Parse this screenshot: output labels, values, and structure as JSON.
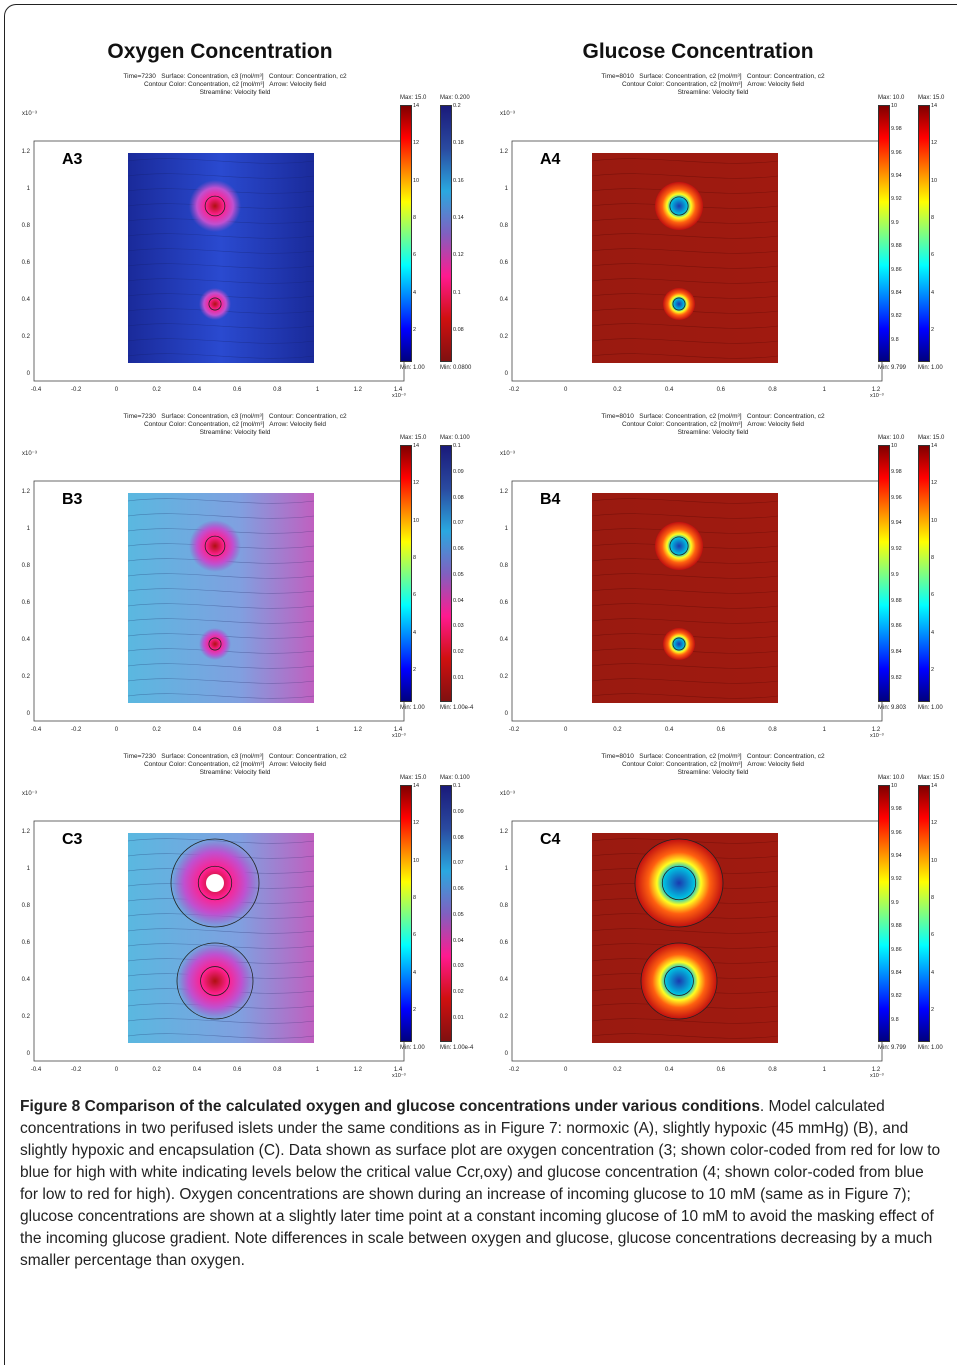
{
  "column_titles": [
    "Oxygen Concentration",
    "Glucose Concentration"
  ],
  "panels": [
    {
      "label": "A3",
      "time": "Time=7230",
      "surface": "Surface: Concentration, c3 [mol/m³]",
      "contour": "Contour: Concentration, c2",
      "contour_color": "Contour Color: Concentration, c2 [mol/m³]",
      "arrow": "Arrow: Velocity field",
      "streamline": "Streamline: Velocity field",
      "cbar1": {
        "max": "Max: 15.0",
        "min": "Min: 1.00",
        "ticks": [
          "14",
          "12",
          "10",
          "8",
          "6",
          "4",
          "2"
        ]
      },
      "cbar2": {
        "max": "Max: 0.200",
        "min": "Min: 0.0800",
        "ticks": [
          "0.2",
          "0.18",
          "0.16",
          "0.14",
          "0.12",
          "0.1",
          "0.08"
        ]
      },
      "xticks": [
        "-0.4",
        "-0.2",
        "0",
        "0.2",
        "0.4",
        "0.6",
        "0.8",
        "1",
        "1.2",
        "1.4"
      ],
      "yticks": [
        "1.2",
        "1",
        "0.8",
        "0.6",
        "0.4",
        "0.2",
        "0"
      ],
      "scale": "x10⁻³"
    },
    {
      "label": "A4",
      "time": "Time=8010",
      "surface": "Surface: Concentration, c2 [mol/m³]",
      "contour": "Contour: Concentration, c2",
      "contour_color": "Contour Color: Concentration, c2 [mol/m³]",
      "arrow": "Arrow: Velocity field",
      "streamline": "Streamline: Velocity field",
      "cbar1": {
        "max": "Max: 10.0",
        "min": "Min: 9.799",
        "ticks": [
          "10",
          "9.98",
          "9.96",
          "9.94",
          "9.92",
          "9.9",
          "9.88",
          "9.86",
          "9.84",
          "9.82",
          "9.8"
        ]
      },
      "cbar2": {
        "max": "Max: 15.0",
        "min": "Min: 1.00",
        "ticks": [
          "14",
          "12",
          "10",
          "8",
          "6",
          "4",
          "2"
        ]
      },
      "xticks": [
        "-0.2",
        "0",
        "0.2",
        "0.4",
        "0.6",
        "0.8",
        "1",
        "1.2"
      ],
      "yticks": [
        "1.2",
        "1",
        "0.8",
        "0.6",
        "0.4",
        "0.2",
        "0"
      ],
      "scale": "x10⁻³"
    },
    {
      "label": "B3",
      "time": "Time=7230",
      "surface": "Surface: Concentration, c3 [mol/m³]",
      "contour": "Contour: Concentration, c2",
      "contour_color": "Contour Color: Concentration, c2 [mol/m³]",
      "arrow": "Arrow: Velocity field",
      "streamline": "Streamline: Velocity field",
      "cbar1": {
        "max": "Max: 15.0",
        "min": "Min: 1.00",
        "ticks": [
          "14",
          "12",
          "10",
          "8",
          "6",
          "4",
          "2"
        ]
      },
      "cbar2": {
        "max": "Max: 0.100",
        "min": "Min: 1.00e-4",
        "ticks": [
          "0.1",
          "0.09",
          "0.08",
          "0.07",
          "0.06",
          "0.05",
          "0.04",
          "0.03",
          "0.02",
          "0.01"
        ]
      },
      "xticks": [
        "-0.4",
        "-0.2",
        "0",
        "0.2",
        "0.4",
        "0.6",
        "0.8",
        "1",
        "1.2",
        "1.4"
      ],
      "yticks": [
        "1.2",
        "1",
        "0.8",
        "0.6",
        "0.4",
        "0.2",
        "0"
      ],
      "scale": "x10⁻³"
    },
    {
      "label": "B4",
      "time": "Time=8010",
      "surface": "Surface: Concentration, c2 [mol/m³]",
      "contour": "Contour: Concentration, c2",
      "contour_color": "Contour Color: Concentration, c2 [mol/m³]",
      "arrow": "Arrow: Velocity field",
      "streamline": "Streamline: Velocity field",
      "cbar1": {
        "max": "Max: 10.0",
        "min": "Min: 9.803",
        "ticks": [
          "10",
          "9.98",
          "9.96",
          "9.94",
          "9.92",
          "9.9",
          "9.88",
          "9.86",
          "9.84",
          "9.82"
        ]
      },
      "cbar2": {
        "max": "Max: 15.0",
        "min": "Min: 1.00",
        "ticks": [
          "14",
          "12",
          "10",
          "8",
          "6",
          "4",
          "2"
        ]
      },
      "xticks": [
        "-0.2",
        "0",
        "0.2",
        "0.4",
        "0.6",
        "0.8",
        "1",
        "1.2"
      ],
      "yticks": [
        "1.2",
        "1",
        "0.8",
        "0.6",
        "0.4",
        "0.2",
        "0"
      ],
      "scale": "x10⁻³"
    },
    {
      "label": "C3",
      "time": "Time=7230",
      "surface": "Surface: Concentration, c3 [mol/m³]",
      "contour": "Contour: Concentration, c2",
      "contour_color": "Contour Color: Concentration, c2 [mol/m³]",
      "arrow": "Arrow: Velocity field",
      "streamline": "Streamline: Velocity field",
      "cbar1": {
        "max": "Max: 15.0",
        "min": "Min: 1.00",
        "ticks": [
          "14",
          "12",
          "10",
          "8",
          "6",
          "4",
          "2"
        ]
      },
      "cbar2": {
        "max": "Max: 0.100",
        "min": "Min: 1.00e-4",
        "ticks": [
          "0.1",
          "0.09",
          "0.08",
          "0.07",
          "0.06",
          "0.05",
          "0.04",
          "0.03",
          "0.02",
          "0.01"
        ]
      },
      "xticks": [
        "-0.4",
        "-0.2",
        "0",
        "0.2",
        "0.4",
        "0.6",
        "0.8",
        "1",
        "1.2",
        "1.4"
      ],
      "yticks": [
        "1.2",
        "1",
        "0.8",
        "0.6",
        "0.4",
        "0.2",
        "0"
      ],
      "scale": "x10⁻³"
    },
    {
      "label": "C4",
      "time": "Time=8010",
      "surface": "Surface: Concentration, c2 [mol/m³]",
      "contour": "Contour: Concentration, c2",
      "contour_color": "Contour Color: Concentration, c2 [mol/m³]",
      "arrow": "Arrow: Velocity field",
      "streamline": "Streamline: Velocity field",
      "cbar1": {
        "max": "Max: 10.0",
        "min": "Min: 9.799",
        "ticks": [
          "10",
          "9.98",
          "9.96",
          "9.94",
          "9.92",
          "9.9",
          "9.88",
          "9.86",
          "9.84",
          "9.82",
          "9.8"
        ]
      },
      "cbar2": {
        "max": "Max: 15.0",
        "min": "Min: 1.00",
        "ticks": [
          "14",
          "12",
          "10",
          "8",
          "6",
          "4",
          "2"
        ]
      },
      "xticks": [
        "-0.2",
        "0",
        "0.2",
        "0.4",
        "0.6",
        "0.8",
        "1",
        "1.2"
      ],
      "yticks": [
        "1.2",
        "1",
        "0.8",
        "0.6",
        "0.4",
        "0.2",
        "0"
      ],
      "scale": "x10⁻³"
    }
  ],
  "caption": {
    "head": "Figure 8 Comparison of the calculated oxygen and glucose concentrations under various conditions",
    "body": ". Model calculated concentrations in two perifused islets under the same conditions as in Figure 7: normoxic (A), slightly hypoxic (45 mmHg) (B), and slightly hypoxic and encapsulation (C). Data shown as surface plot are oxygen concentration (3; shown color-coded from red for low to blue for high with white indicating levels below the critical value Ccr,oxy) and glucose concentration (4; shown color-coded from blue for low to red for high). Oxygen concentrations are shown during an increase of incoming glucose to 10 mM (same as in Figure 7); glucose concentrations are shown at a slightly later time point at a constant incoming glucose of 10 mM to avoid the masking effect of the incoming glucose gradient. Note differences in scale between oxygen and glucose, glucose concentrations decreasing by a much smaller percentage than oxygen."
  }
}
